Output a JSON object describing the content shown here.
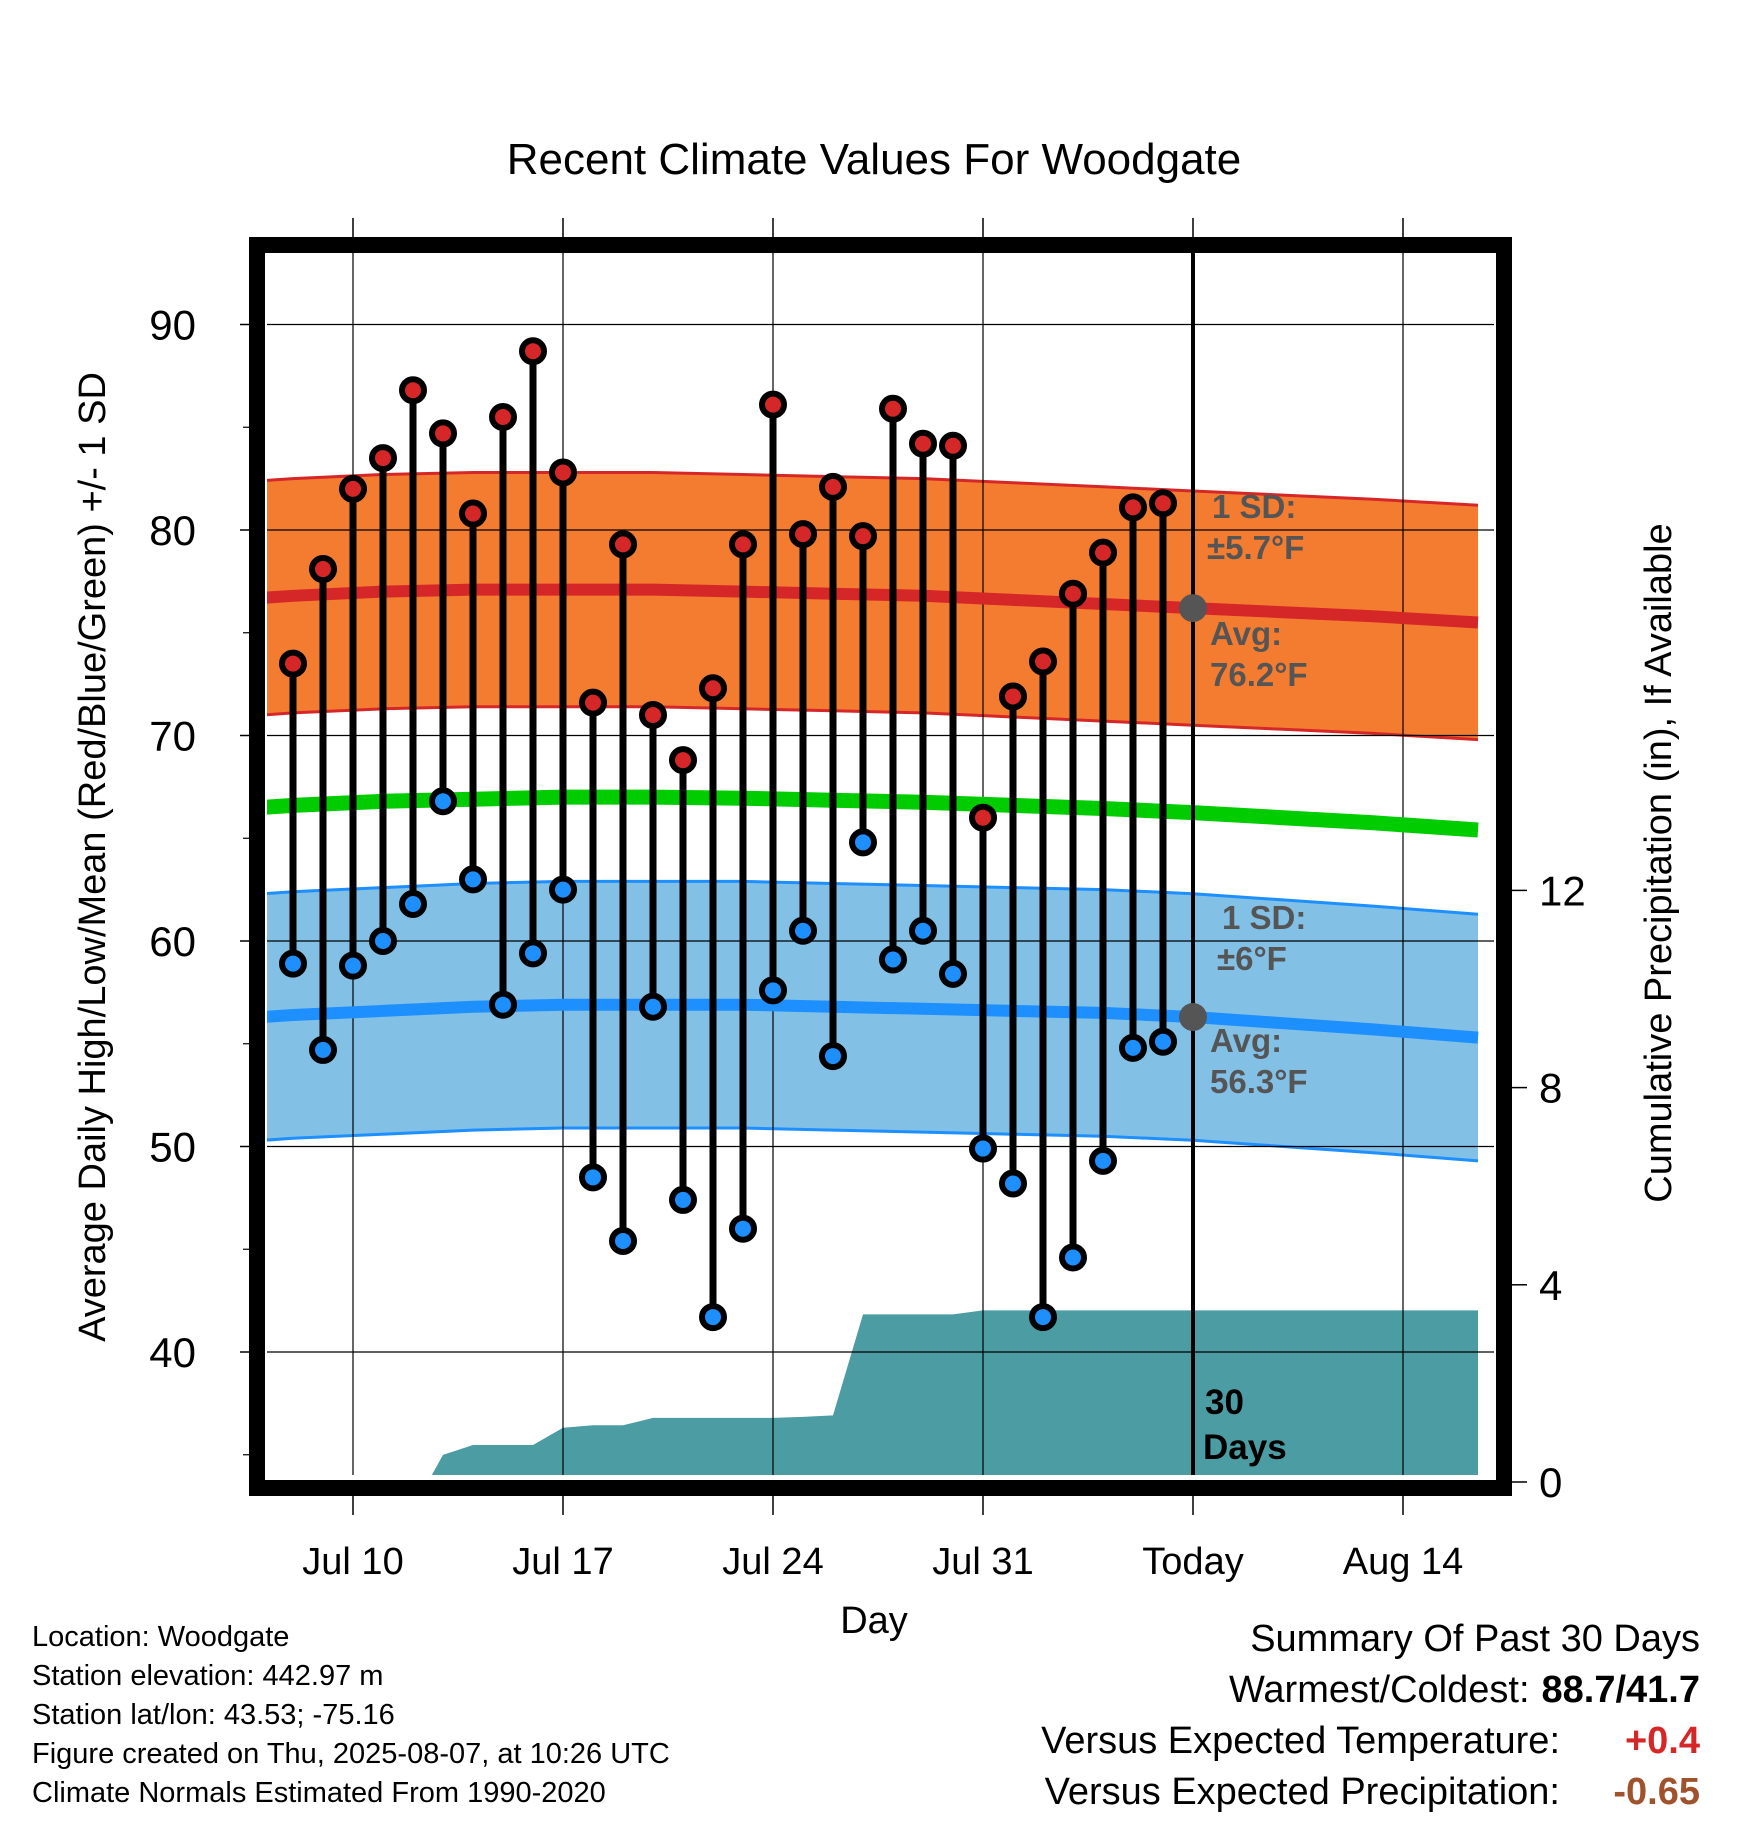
{
  "chart_data": {
    "type": "line",
    "title": "Recent Climate Values For Woodgate",
    "xlabel": "Day",
    "ylabel": "Average Daily High/Low/Mean (Red/Blue/Green) +/- 1 SD",
    "y2label": "Cumulative Precipitation (in), If Available",
    "ylim": [
      34,
      94
    ],
    "y2lim": [
      0,
      24
    ],
    "yticks": [
      "40",
      "50",
      "60",
      "70",
      "80",
      "90"
    ],
    "y2ticks": [
      "0",
      "4",
      "8",
      "12"
    ],
    "xticks": [
      "Jul 10",
      "Jul 17",
      "Jul 24",
      "Jul 31",
      "Today",
      "Aug 14"
    ],
    "grid": true,
    "x_days_range": [
      -33.2,
      9.5
    ],
    "xtick_days": [
      -28,
      -21,
      -14,
      -7,
      0,
      7
    ],
    "obs_days": [
      -30,
      -29,
      -28,
      -27,
      -26,
      -25,
      -24,
      -23,
      -22,
      -21,
      -20,
      -19,
      -18,
      -17,
      -16,
      -15,
      -14,
      -13,
      -12,
      -11,
      -10,
      -9,
      -8,
      -7,
      -6,
      -5,
      -4,
      -3,
      -2,
      -1
    ],
    "daily_high": [
      73.5,
      78.1,
      82.0,
      83.5,
      86.8,
      84.7,
      80.8,
      85.5,
      88.7,
      82.8,
      71.6,
      79.3,
      71.0,
      68.8,
      72.3,
      79.3,
      86.1,
      79.8,
      82.1,
      79.7,
      85.9,
      84.2,
      84.1,
      66.0,
      71.9,
      73.6,
      76.9,
      78.9,
      81.1,
      81.3
    ],
    "daily_low": [
      58.9,
      54.7,
      58.8,
      60.0,
      61.8,
      66.8,
      63.0,
      56.9,
      59.4,
      62.5,
      48.5,
      45.4,
      56.8,
      47.4,
      41.7,
      46.0,
      57.6,
      60.5,
      54.4,
      64.8,
      59.1,
      60.5,
      58.4,
      49.9,
      48.2,
      41.7,
      44.6,
      49.3,
      54.8,
      55.1
    ],
    "normals_days": [
      -33,
      -30,
      -27,
      -24,
      -21,
      -18,
      -15,
      -12,
      -9,
      -6,
      -3,
      0,
      3,
      6,
      9.5
    ],
    "normal_high": [
      76.5,
      76.8,
      77.0,
      77.1,
      77.1,
      77.1,
      77.0,
      76.9,
      76.8,
      76.6,
      76.4,
      76.2,
      76.0,
      75.8,
      75.5
    ],
    "normal_low": [
      56.1,
      56.4,
      56.6,
      56.8,
      56.9,
      56.9,
      56.9,
      56.8,
      56.7,
      56.6,
      56.5,
      56.3,
      56.0,
      55.7,
      55.3
    ],
    "normal_mean": [
      66.3,
      66.6,
      66.8,
      66.9,
      67.0,
      67.0,
      66.95,
      66.85,
      66.75,
      66.6,
      66.45,
      66.25,
      66.0,
      65.75,
      65.4
    ],
    "high_sd": 5.7,
    "low_sd": 6.0,
    "precip_days": [
      -33.2,
      -28,
      -27,
      -26,
      -25.5,
      -25,
      -24,
      -23,
      -22,
      -21,
      -20,
      -19,
      -18,
      -17,
      -16,
      -15,
      -14,
      -13,
      -12,
      -11,
      -10,
      -9,
      -8,
      -7,
      -6,
      -5,
      9.5
    ],
    "precip_cumulative": [
      0,
      0,
      0,
      0,
      0,
      0.55,
      0.75,
      0.75,
      0.75,
      1.1,
      1.15,
      1.15,
      1.3,
      1.3,
      1.3,
      1.3,
      1.3,
      1.32,
      1.35,
      3.4,
      3.4,
      3.4,
      3.4,
      3.48,
      3.48,
      3.48,
      3.48
    ],
    "today_label": "30\nDays",
    "high_annotation": {
      "sd": "1 SD:",
      "sd_value": "±5.7°F",
      "avg": "Avg:",
      "avg_value": "76.2°F"
    },
    "low_annotation": {
      "sd": "1 SD:",
      "sd_value": "±6°F",
      "avg": "Avg:",
      "avg_value": "56.3°F"
    },
    "colors": {
      "high_band": "#f47c30",
      "high_band_edge": "#d62728",
      "high_line": "#d62728",
      "low_band": "#82c0e6",
      "low_band_edge": "#1e8fff",
      "low_line": "#1e8fff",
      "mean_line": "#00cc00",
      "precip": "#4b9ca3",
      "high_dot": "#d62728",
      "low_dot": "#1e8fff",
      "annotation": "#555555"
    }
  },
  "info": {
    "location": "Location: Woodgate",
    "elevation": "Station elevation: 442.97 m",
    "latlon": "Station lat/lon: 43.53; -75.16",
    "created": "Figure created on Thu, 2025-08-07, at 10:26 UTC",
    "normals": "Climate Normals Estimated From 1990-2020"
  },
  "summary": {
    "title": "Summary Of Past 30 Days",
    "warm_cold_label": "Warmest/Coldest:",
    "warm_cold_value": "88.7/41.7",
    "temp_label": "Versus Expected Temperature:",
    "temp_value": "+0.4",
    "precip_label": "Versus Expected Precipitation:",
    "precip_value": "-0.65"
  }
}
